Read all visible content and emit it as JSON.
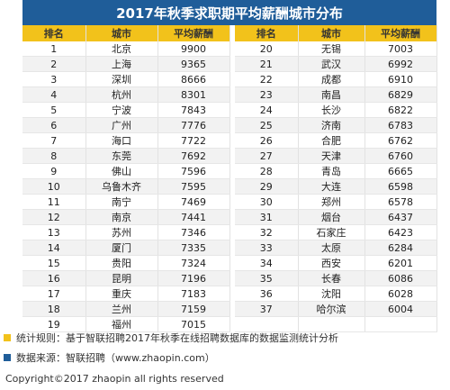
{
  "title": "2017年秋季求职期平均薪酬城市分布",
  "headers": [
    "排名",
    "城市",
    "平均薪酬",
    "排名",
    "城市",
    "平均薪酬"
  ],
  "left_rows": [
    [
      "1",
      "北京",
      "9900"
    ],
    [
      "2",
      "上海",
      "9365"
    ],
    [
      "3",
      "深圳",
      "8666"
    ],
    [
      "4",
      "杭州",
      "8301"
    ],
    [
      "5",
      "宁波",
      "7843"
    ],
    [
      "6",
      "广州",
      "7776"
    ],
    [
      "7",
      "海口",
      "7722"
    ],
    [
      "8",
      "东莞",
      "7692"
    ],
    [
      "9",
      "佛山",
      "7596"
    ],
    [
      "10",
      "乌鲁木齐",
      "7595"
    ],
    [
      "11",
      "南宁",
      "7469"
    ],
    [
      "12",
      "南京",
      "7441"
    ],
    [
      "13",
      "苏州",
      "7346"
    ],
    [
      "14",
      "厦门",
      "7335"
    ],
    [
      "15",
      "贵阳",
      "7324"
    ],
    [
      "16",
      "昆明",
      "7196"
    ],
    [
      "17",
      "重庆",
      "7183"
    ],
    [
      "18",
      "兰州",
      "7159"
    ],
    [
      "19",
      "福州",
      "7015"
    ]
  ],
  "right_rows": [
    [
      "20",
      "无锡",
      "7003"
    ],
    [
      "21",
      "武汉",
      "6992"
    ],
    [
      "22",
      "成都",
      "6910"
    ],
    [
      "23",
      "南昌",
      "6829"
    ],
    [
      "24",
      "长沙",
      "6822"
    ],
    [
      "25",
      "济南",
      "6783"
    ],
    [
      "26",
      "合肥",
      "6762"
    ],
    [
      "27",
      "天津",
      "6760"
    ],
    [
      "28",
      "青岛",
      "6665"
    ],
    [
      "29",
      "大连",
      "6598"
    ],
    [
      "30",
      "郑州",
      "6578"
    ],
    [
      "31",
      "烟台",
      "6437"
    ],
    [
      "32",
      "石家庄",
      "6423"
    ],
    [
      "33",
      "太原",
      "6284"
    ],
    [
      "34",
      "西安",
      "6201"
    ],
    [
      "35",
      "长春",
      "6086"
    ],
    [
      "36",
      "沈阳",
      "6028"
    ],
    [
      "37",
      "哈尔滨",
      "6004"
    ],
    [
      "",
      "",
      ""
    ]
  ],
  "notes": {
    "stat_rule": "统计规则：基于智联招聘2017年秋季在线招聘数据库的数据监测统计分析",
    "source": "数据来源：智联招聘（www.zhaopin.com）"
  },
  "copyright": "Copyright©2017 zhaopin all rights reserved",
  "colors": {
    "title_bg": "#1f5d99",
    "header_bg": "#f2c21b"
  }
}
